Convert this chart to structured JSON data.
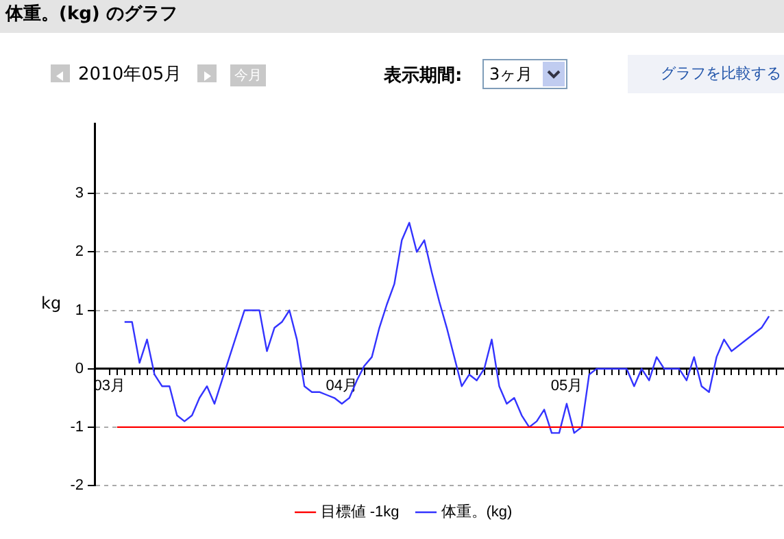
{
  "chart_data": {
    "type": "line",
    "title": "体重。(kg) のグラフ",
    "ylabel": "kg",
    "annotations": [
      "2010年05月",
      "今月",
      "表示期間:",
      "3ヶ月",
      "グラフを比較する"
    ],
    "series": [
      {
        "name": "目標値 -1kg",
        "color": "#ff0000",
        "x": [
          "2010-03-02",
          "2010-05-30"
        ],
        "values": [
          -1,
          -1
        ]
      },
      {
        "name": "体重。(kg)",
        "color": "#3333ff",
        "x": [
          "2010-03-03",
          "2010-03-04",
          "2010-03-05",
          "2010-03-06",
          "2010-03-07",
          "2010-03-08",
          "2010-03-09",
          "2010-03-10",
          "2010-03-11",
          "2010-03-12",
          "2010-03-13",
          "2010-03-14",
          "2010-03-15",
          "2010-03-16",
          "2010-03-17",
          "2010-03-18",
          "2010-03-19",
          "2010-03-20",
          "2010-03-21",
          "2010-03-22",
          "2010-03-23",
          "2010-03-24",
          "2010-03-25",
          "2010-03-26",
          "2010-03-27",
          "2010-03-28",
          "2010-03-29",
          "2010-03-30",
          "2010-03-31",
          "2010-04-01",
          "2010-04-02",
          "2010-04-03",
          "2010-04-04",
          "2010-04-05",
          "2010-04-06",
          "2010-04-07",
          "2010-04-08",
          "2010-04-09",
          "2010-04-10",
          "2010-04-11",
          "2010-04-12",
          "2010-04-13",
          "2010-04-14",
          "2010-04-15",
          "2010-04-16",
          "2010-04-17",
          "2010-04-18",
          "2010-04-19",
          "2010-04-20",
          "2010-04-21",
          "2010-04-22",
          "2010-04-23",
          "2010-04-24",
          "2010-04-25",
          "2010-04-26",
          "2010-04-27",
          "2010-04-28",
          "2010-04-29",
          "2010-04-30",
          "2010-05-01",
          "2010-05-02",
          "2010-05-03",
          "2010-05-04",
          "2010-05-05",
          "2010-05-06",
          "2010-05-07",
          "2010-05-08",
          "2010-05-09",
          "2010-05-10",
          "2010-05-11",
          "2010-05-12",
          "2010-05-13",
          "2010-05-14",
          "2010-05-15",
          "2010-05-16",
          "2010-05-17",
          "2010-05-18",
          "2010-05-19",
          "2010-05-20",
          "2010-05-21",
          "2010-05-22",
          "2010-05-23",
          "2010-05-27",
          "2010-05-28"
        ],
        "values": [
          0.8,
          0.8,
          0.1,
          0.5,
          -0.1,
          -0.3,
          -0.3,
          -0.8,
          -0.9,
          -0.8,
          -0.5,
          -0.3,
          -0.6,
          -0.2,
          0.2,
          0.6,
          1.0,
          1.0,
          1.0,
          0.3,
          0.7,
          0.8,
          1.0,
          0.5,
          -0.3,
          -0.4,
          -0.4,
          -0.45,
          -0.5,
          -0.6,
          -0.5,
          -0.2,
          0.05,
          0.2,
          0.7,
          1.1,
          1.45,
          2.2,
          2.5,
          2.0,
          2.2,
          1.65,
          1.15,
          0.7,
          0.2,
          -0.3,
          -0.1,
          -0.2,
          0.0,
          0.5,
          -0.3,
          -0.6,
          -0.5,
          -0.8,
          -1.0,
          -0.9,
          -0.7,
          -1.1,
          -1.1,
          -0.6,
          -1.1,
          -1.0,
          -0.1,
          0.0,
          0.0,
          0.0,
          0.0,
          0.0,
          -0.3,
          0.0,
          -0.2,
          0.2,
          0.0,
          0.0,
          0.0,
          -0.2,
          0.2,
          -0.3,
          -0.4,
          0.2,
          0.5,
          0.3,
          0.7,
          0.9
        ]
      }
    ],
    "xlim": [
      "2010-02-27",
      "2010-05-30"
    ],
    "xticks": [
      {
        "value": "2010-03-01",
        "label": "03月"
      },
      {
        "value": "2010-03-02",
        "label": null
      },
      {
        "value": "2010-03-03",
        "label": null
      },
      {
        "value": "2010-03-04",
        "label": null
      },
      {
        "value": "2010-03-05",
        "label": null
      },
      {
        "value": "2010-03-06",
        "label": null
      },
      {
        "value": "2010-03-07",
        "label": null
      },
      {
        "value": "2010-03-08",
        "label": null
      },
      {
        "value": "2010-03-09",
        "label": null
      },
      {
        "value": "2010-03-10",
        "label": null
      },
      {
        "value": "2010-03-11",
        "label": null
      },
      {
        "value": "2010-03-12",
        "label": null
      },
      {
        "value": "2010-03-13",
        "label": null
      },
      {
        "value": "2010-03-14",
        "label": null
      },
      {
        "value": "2010-03-15",
        "label": null
      },
      {
        "value": "2010-03-16",
        "label": null
      },
      {
        "value": "2010-03-17",
        "label": null
      },
      {
        "value": "2010-03-18",
        "label": null
      },
      {
        "value": "2010-03-19",
        "label": null
      },
      {
        "value": "2010-03-20",
        "label": null
      },
      {
        "value": "2010-03-21",
        "label": null
      },
      {
        "value": "2010-03-22",
        "label": null
      },
      {
        "value": "2010-03-23",
        "label": null
      },
      {
        "value": "2010-03-24",
        "label": null
      },
      {
        "value": "2010-03-25",
        "label": null
      },
      {
        "value": "2010-03-26",
        "label": null
      },
      {
        "value": "2010-03-27",
        "label": null
      },
      {
        "value": "2010-03-28",
        "label": null
      },
      {
        "value": "2010-03-29",
        "label": null
      },
      {
        "value": "2010-03-30",
        "label": null
      },
      {
        "value": "2010-03-31",
        "label": null
      },
      {
        "value": "2010-04-01",
        "label": "04月"
      },
      {
        "value": "2010-04-02",
        "label": null
      },
      {
        "value": "2010-04-03",
        "label": null
      },
      {
        "value": "2010-04-04",
        "label": null
      },
      {
        "value": "2010-04-05",
        "label": null
      },
      {
        "value": "2010-04-06",
        "label": null
      },
      {
        "value": "2010-04-07",
        "label": null
      },
      {
        "value": "2010-04-08",
        "label": null
      },
      {
        "value": "2010-04-09",
        "label": null
      },
      {
        "value": "2010-04-10",
        "label": null
      },
      {
        "value": "2010-04-11",
        "label": null
      },
      {
        "value": "2010-04-12",
        "label": null
      },
      {
        "value": "2010-04-13",
        "label": null
      },
      {
        "value": "2010-04-14",
        "label": null
      },
      {
        "value": "2010-04-15",
        "label": null
      },
      {
        "value": "2010-04-16",
        "label": null
      },
      {
        "value": "2010-04-17",
        "label": null
      },
      {
        "value": "2010-04-18",
        "label": null
      },
      {
        "value": "2010-04-19",
        "label": null
      },
      {
        "value": "2010-04-20",
        "label": null
      },
      {
        "value": "2010-04-21",
        "label": null
      },
      {
        "value": "2010-04-22",
        "label": null
      },
      {
        "value": "2010-04-23",
        "label": null
      },
      {
        "value": "2010-04-24",
        "label": null
      },
      {
        "value": "2010-04-25",
        "label": null
      },
      {
        "value": "2010-04-26",
        "label": null
      },
      {
        "value": "2010-04-27",
        "label": null
      },
      {
        "value": "2010-04-28",
        "label": null
      },
      {
        "value": "2010-04-29",
        "label": null
      },
      {
        "value": "2010-04-30",
        "label": null
      },
      {
        "value": "2010-05-01",
        "label": "05月"
      },
      {
        "value": "2010-05-02",
        "label": null
      },
      {
        "value": "2010-05-03",
        "label": null
      },
      {
        "value": "2010-05-04",
        "label": null
      },
      {
        "value": "2010-05-05",
        "label": null
      },
      {
        "value": "2010-05-06",
        "label": null
      },
      {
        "value": "2010-05-07",
        "label": null
      },
      {
        "value": "2010-05-08",
        "label": null
      },
      {
        "value": "2010-05-09",
        "label": null
      },
      {
        "value": "2010-05-10",
        "label": null
      },
      {
        "value": "2010-05-11",
        "label": null
      },
      {
        "value": "2010-05-12",
        "label": null
      },
      {
        "value": "2010-05-13",
        "label": null
      },
      {
        "value": "2010-05-14",
        "label": null
      },
      {
        "value": "2010-05-15",
        "label": null
      },
      {
        "value": "2010-05-16",
        "label": null
      },
      {
        "value": "2010-05-17",
        "label": null
      },
      {
        "value": "2010-05-18",
        "label": null
      },
      {
        "value": "2010-05-19",
        "label": null
      },
      {
        "value": "2010-05-20",
        "label": null
      },
      {
        "value": "2010-05-21",
        "label": null
      },
      {
        "value": "2010-05-22",
        "label": null
      },
      {
        "value": "2010-05-23",
        "label": null
      },
      {
        "value": "2010-05-24",
        "label": null
      },
      {
        "value": "2010-05-25",
        "label": null
      },
      {
        "value": "2010-05-26",
        "label": null
      },
      {
        "value": "2010-05-27",
        "label": null
      },
      {
        "value": "2010-05-28",
        "label": null
      },
      {
        "value": "2010-05-29",
        "label": null
      }
    ],
    "ylim": [
      -2,
      4.2
    ],
    "yticks": [
      -2,
      -1,
      0,
      1,
      2,
      3
    ],
    "grid": "y",
    "legend": "bottom"
  }
}
